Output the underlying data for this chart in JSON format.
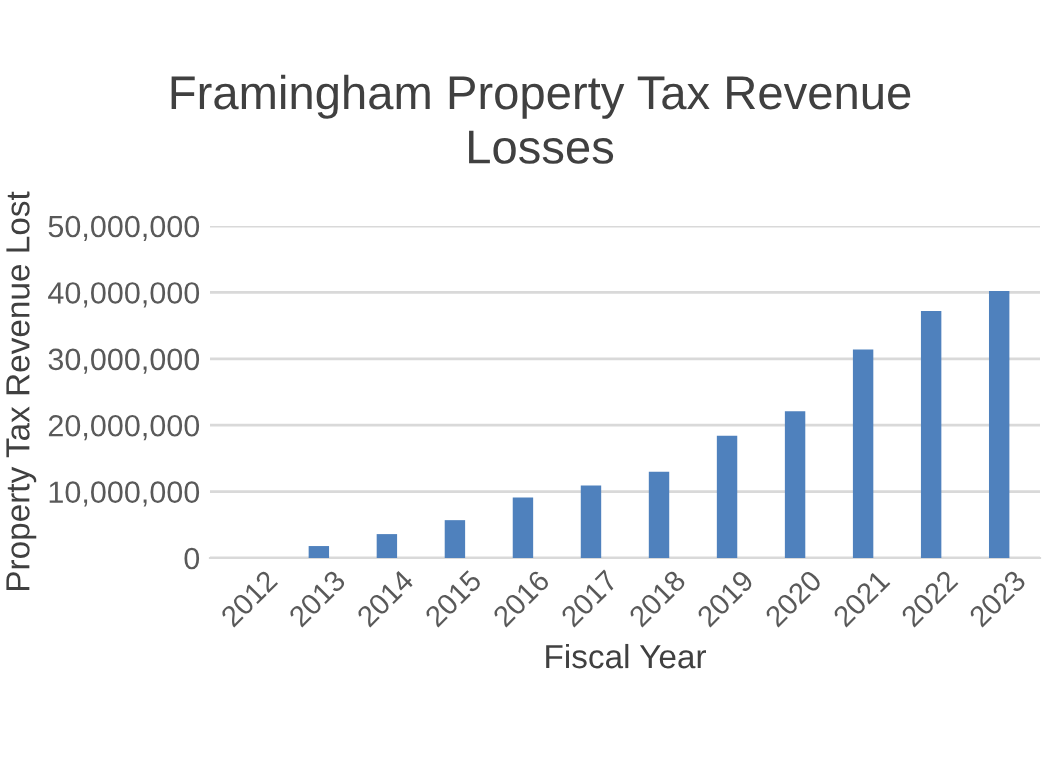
{
  "chart_data": {
    "type": "bar",
    "title": "Framingham Property Tax Revenue\nLosses",
    "xlabel": "Fiscal Year",
    "ylabel": "Property Tax Revenue Lost",
    "categories": [
      "2012",
      "2013",
      "2014",
      "2015",
      "2016",
      "2017",
      "2018",
      "2019",
      "2020",
      "2021",
      "2022",
      "2023"
    ],
    "values": [
      0,
      1800000,
      3600000,
      5700000,
      9100000,
      10900000,
      13000000,
      18400000,
      22100000,
      31400000,
      37200000,
      40200000
    ],
    "color": "#4f81bd",
    "ylim": [
      0,
      50000000
    ],
    "yticks": [
      {
        "value": 0,
        "label": "0"
      },
      {
        "value": 10000000,
        "label": "10,000,000"
      },
      {
        "value": 20000000,
        "label": "20,000,000"
      },
      {
        "value": 30000000,
        "label": "30,000,000"
      },
      {
        "value": 40000000,
        "label": "40,000,000"
      },
      {
        "value": 50000000,
        "label": "50,000,000"
      }
    ],
    "grid": "y"
  }
}
